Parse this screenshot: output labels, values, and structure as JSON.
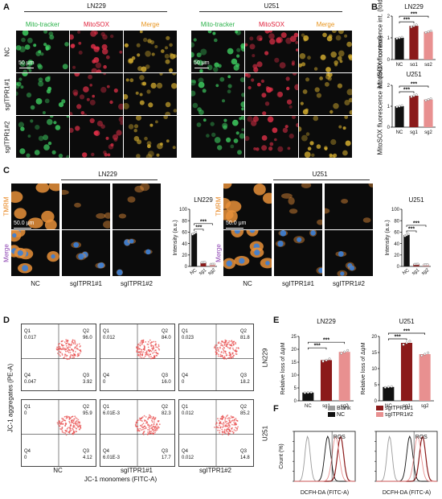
{
  "panels": {
    "A": "A",
    "B": "B",
    "C": "C",
    "D": "D",
    "E": "E",
    "F": "F"
  },
  "panelA": {
    "cell_lines": [
      "LN229",
      "U251"
    ],
    "columns": [
      "Mito-tracker",
      "MitoSOX",
      "Merge"
    ],
    "column_colors": [
      "#2bb24a",
      "#e0203a",
      "#e8931a"
    ],
    "rows": [
      "NC",
      "sgITPR1#1",
      "sgITPR1#2"
    ],
    "scalebar": "50 μm"
  },
  "panelC": {
    "cell_lines": [
      "LN229",
      "U251"
    ],
    "row_labels": [
      "TMRM",
      "Merge"
    ],
    "row_label_colors": [
      "#e8831a",
      "#8a3fb0"
    ],
    "col_labels": [
      "NC",
      "sgITPR1#1",
      "sgITPR1#2"
    ],
    "scalebar": "50.0 μm"
  },
  "panelD": {
    "xlabel": "JC-1 monomers (FITC-A)",
    "ylabel": "JC-1 aggregates (PE-A)",
    "row_labels": [
      "LN229",
      "U251"
    ],
    "col_labels": [
      "NC",
      "sgITPR1#1",
      "sgITPR1#2"
    ],
    "quad_names": [
      "Q1",
      "Q2",
      "Q4",
      "Q3"
    ],
    "plots": [
      [
        {
          "q1": "0.017",
          "q2": "96.0",
          "q4": "0.047",
          "q3": "3.92"
        },
        {
          "q1": "0.012",
          "q2": "84.0",
          "q4": "0",
          "q3": "16.0"
        },
        {
          "q1": "0.023",
          "q2": "81.8",
          "q4": "0",
          "q3": "18.2"
        }
      ],
      [
        {
          "q1": "0",
          "q2": "95.9",
          "q4": "0",
          "q3": "4.12"
        },
        {
          "q1": "6.01E-3",
          "q2": "82.3",
          "q4": "6.01E-3",
          "q3": "17.7"
        },
        {
          "q1": "0.012",
          "q2": "85.2",
          "q4": "0.012",
          "q3": "14.8"
        }
      ]
    ]
  },
  "panelF": {
    "xlabel": "DCFH-DA (FITC-A)",
    "ylabel": "Count (%)",
    "annotation": "ROS",
    "legend": [
      {
        "label": "Blank",
        "color": "#9a9a9a"
      },
      {
        "label": "NC",
        "color": "#111111"
      },
      {
        "label": "sgITPR1#1",
        "color": "#8b1a1a"
      },
      {
        "label": "sgITPR1#2",
        "color": "#e89090"
      }
    ]
  },
  "sig": "***",
  "chart_data": [
    {
      "type": "bar",
      "panel": "B",
      "title": "LN229",
      "ylabel": "MitoSOX fluorescence int. (fold of control)",
      "categories": [
        "NC",
        "sg1",
        "sg2"
      ],
      "values": [
        1.0,
        1.55,
        1.28
      ],
      "ylim": [
        0,
        2
      ],
      "yticks": [
        "0",
        "1",
        "2"
      ],
      "colors": [
        "#111111",
        "#8b1a1a",
        "#e89090"
      ]
    },
    {
      "type": "bar",
      "panel": "B",
      "title": "U251",
      "ylabel": "MitoSOX fluorescence int. (fold of control)",
      "categories": [
        "NC",
        "sg1",
        "sg2"
      ],
      "values": [
        1.0,
        1.5,
        1.32
      ],
      "ylim": [
        0,
        2
      ],
      "yticks": [
        "0",
        "1",
        "2"
      ],
      "colors": [
        "#111111",
        "#8b1a1a",
        "#e89090"
      ]
    },
    {
      "type": "bar",
      "panel": "C",
      "title": "LN229",
      "ylabel": "Intensity (a.u.)",
      "categories": [
        "NC",
        "sg1",
        "sg2"
      ],
      "values": [
        58,
        7,
        4
      ],
      "ylim": [
        0,
        100
      ],
      "yticks": [
        "0",
        "20",
        "40",
        "60",
        "80",
        "100"
      ],
      "colors": [
        "#111111",
        "#8b1a1a",
        "#e89090"
      ]
    },
    {
      "type": "bar",
      "panel": "C",
      "title": "U251",
      "ylabel": "Intensity (a.u.)",
      "categories": [
        "NC",
        "sg1",
        "sg2"
      ],
      "values": [
        55,
        4,
        3
      ],
      "ylim": [
        0,
        100
      ],
      "yticks": [
        "0",
        "20",
        "40",
        "60",
        "80",
        "100"
      ],
      "colors": [
        "#111111",
        "#8b1a1a",
        "#e89090"
      ]
    },
    {
      "type": "bar",
      "panel": "E",
      "title": "LN229",
      "ylabel": "Relative loss of ΔψM",
      "categories": [
        "NC",
        "sg1",
        "sg2"
      ],
      "values": [
        3.2,
        15.8,
        19.0
      ],
      "ylim": [
        0,
        25
      ],
      "yticks": [
        "0",
        "5",
        "10",
        "15",
        "20",
        "25"
      ],
      "colors": [
        "#111111",
        "#8b1a1a",
        "#e89090"
      ]
    },
    {
      "type": "bar",
      "panel": "E",
      "title": "U251",
      "ylabel": "Relative loss of ΔψM",
      "categories": [
        "NC",
        "sg1",
        "sg2"
      ],
      "values": [
        4.3,
        18.0,
        14.5
      ],
      "ylim": [
        0,
        20
      ],
      "yticks": [
        "0",
        "5",
        "10",
        "15",
        "20"
      ],
      "colors": [
        "#111111",
        "#8b1a1a",
        "#e89090"
      ]
    }
  ]
}
